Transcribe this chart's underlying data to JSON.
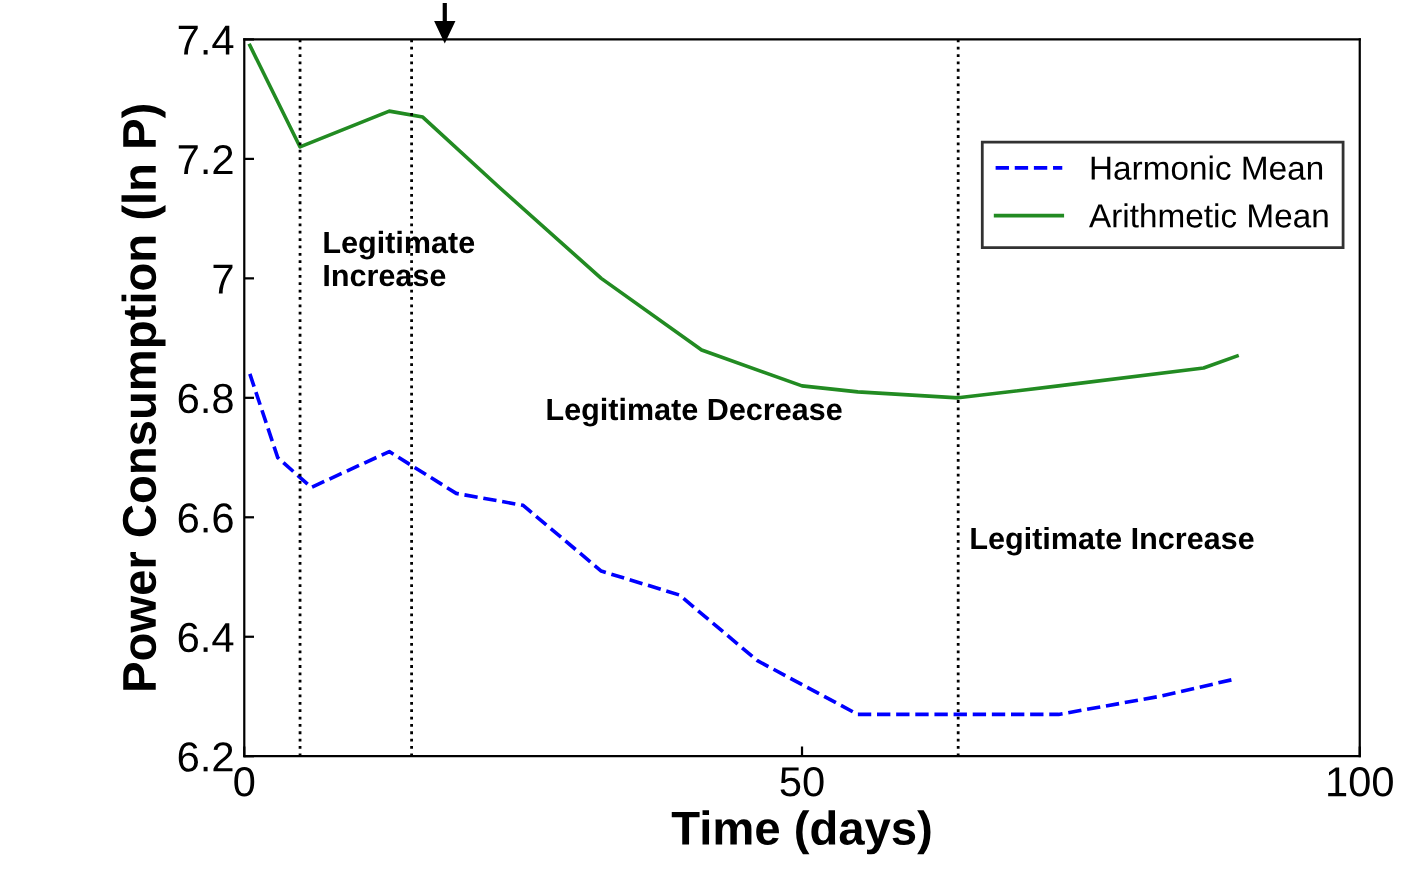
{
  "chart_data": {
    "type": "line",
    "xlabel": "Time (days)",
    "ylabel": "Power Consumption (ln P)",
    "series": [
      {
        "name": "Harmonic Mean",
        "color": "#0000ff",
        "line_style": "dashed",
        "x": [
          0.5,
          3,
          6,
          13,
          19,
          25,
          32,
          39,
          46,
          55,
          64,
          73,
          82,
          89
        ],
        "values": [
          6.84,
          6.7,
          6.65,
          6.71,
          6.64,
          6.62,
          6.51,
          6.47,
          6.36,
          6.27,
          6.27,
          6.27,
          6.3,
          6.33
        ]
      },
      {
        "name": "Arithmetic Mean",
        "color": "#228b22",
        "line_style": "solid",
        "x": [
          0.5,
          5,
          13,
          16,
          23,
          32,
          41,
          50,
          55,
          64,
          73,
          86,
          89
        ],
        "values": [
          7.39,
          7.22,
          7.28,
          7.27,
          7.15,
          7.0,
          6.88,
          6.82,
          6.81,
          6.8,
          6.82,
          6.85,
          6.87
        ]
      }
    ],
    "xlim": [
      0,
      100
    ],
    "xticks": [
      0,
      50,
      100
    ],
    "ylim": [
      6.2,
      7.4
    ],
    "yticks": [
      6.2,
      6.4,
      6.6,
      6.8,
      7,
      7.2,
      7.4
    ],
    "ref_lines": [
      {
        "axis": "x",
        "value": 5,
        "line_style": "dotted",
        "color": "#000000"
      },
      {
        "axis": "x",
        "value": 15,
        "line_style": "dotted",
        "color": "#000000"
      },
      {
        "axis": "x",
        "value": 64,
        "line_style": "dotted",
        "color": "#000000"
      }
    ],
    "annotations": [
      "Legitimate\nIncrease",
      "Legitimate Decrease",
      "Legitimate Increase"
    ],
    "legend": "top right",
    "grid": false
  }
}
